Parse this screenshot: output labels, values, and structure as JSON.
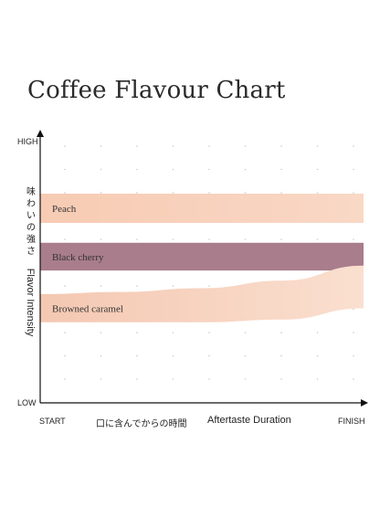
{
  "title": "Coffee Flavour Chart",
  "chart_data": {
    "type": "area",
    "title": "Coffee Flavour Chart",
    "ylabel_jp": "味わいの強さ",
    "ylabel": "Flavor Intensity",
    "xlabel_jp": "口に含んでからの時間",
    "xlabel": "Aftertaste Duration",
    "y_ticks": {
      "top": "HIGH",
      "bottom": "LOW"
    },
    "x_ticks": {
      "start": "START",
      "end": "FINISH"
    },
    "xlim": [
      0,
      1
    ],
    "ylim": [
      0,
      1
    ],
    "grid": "dotted",
    "series": [
      {
        "name": "Peach",
        "color": "#f7cfb8",
        "x": [
          0,
          1
        ],
        "upper": [
          0.779,
          0.779
        ],
        "lower": [
          0.67,
          0.67
        ]
      },
      {
        "name": "Black cherry",
        "color": "#a97d8c",
        "x": [
          0,
          1
        ],
        "upper": [
          0.596,
          0.596
        ],
        "lower": [
          0.493,
          0.493
        ]
      },
      {
        "name": "Browned caramel",
        "color": "#f3cdb9",
        "x": [
          0,
          0.25,
          0.5,
          0.75,
          1
        ],
        "upper": [
          0.405,
          0.413,
          0.427,
          0.455,
          0.511
        ],
        "lower": [
          0.3,
          0.3,
          0.3,
          0.31,
          0.352
        ]
      }
    ]
  }
}
